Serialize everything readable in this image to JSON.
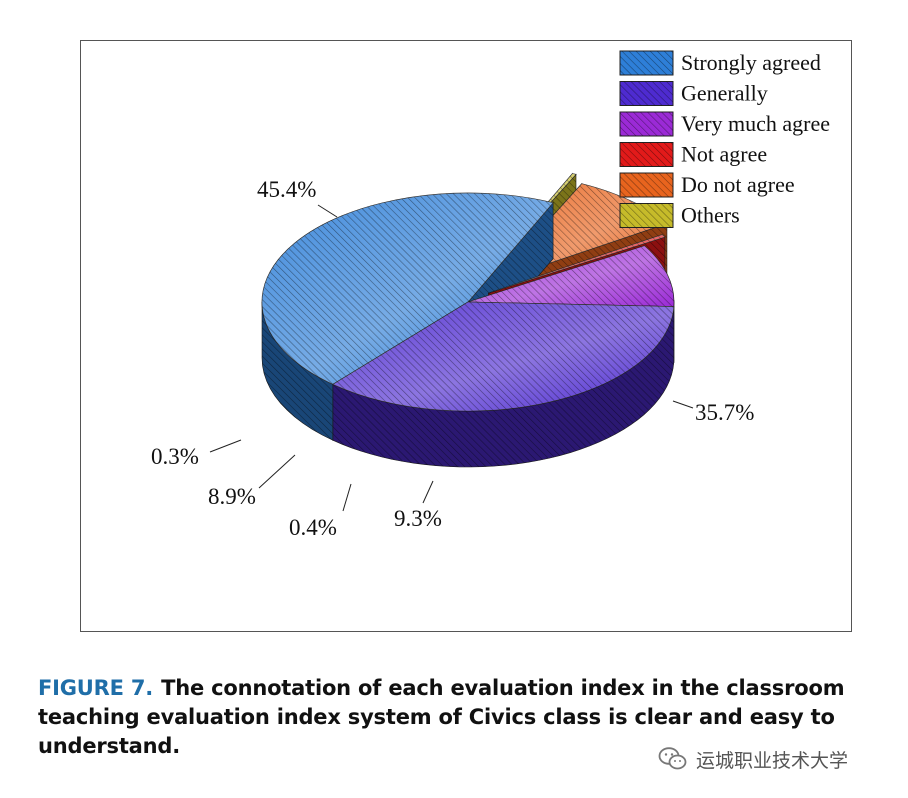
{
  "chart_data": {
    "type": "pie",
    "categories": [
      "Strongly agreed",
      "Generally",
      "Very much agree",
      "Not agree",
      "Do not agree",
      "Others"
    ],
    "values": [
      45.4,
      35.7,
      9.3,
      0.4,
      8.9,
      0.3
    ],
    "value_labels": [
      "45.4%",
      "35.7%",
      "9.3%",
      "0.4%",
      "8.9%",
      "0.3%"
    ],
    "colors": [
      "#2e7fd8",
      "#4e2bd0",
      "#9b2ad6",
      "#e21a1a",
      "#e8641e",
      "#c6bb2a"
    ],
    "style": "3d-exploded-hatched",
    "legend": "top-right"
  },
  "caption": {
    "label": "FIGURE 7.",
    "text": "The connotation of each evaluation index in the classroom teaching evaluation index system of Civics class is clear and easy to understand."
  },
  "watermark": {
    "icon": "wechat-icon",
    "text": "运城职业技术大学"
  }
}
